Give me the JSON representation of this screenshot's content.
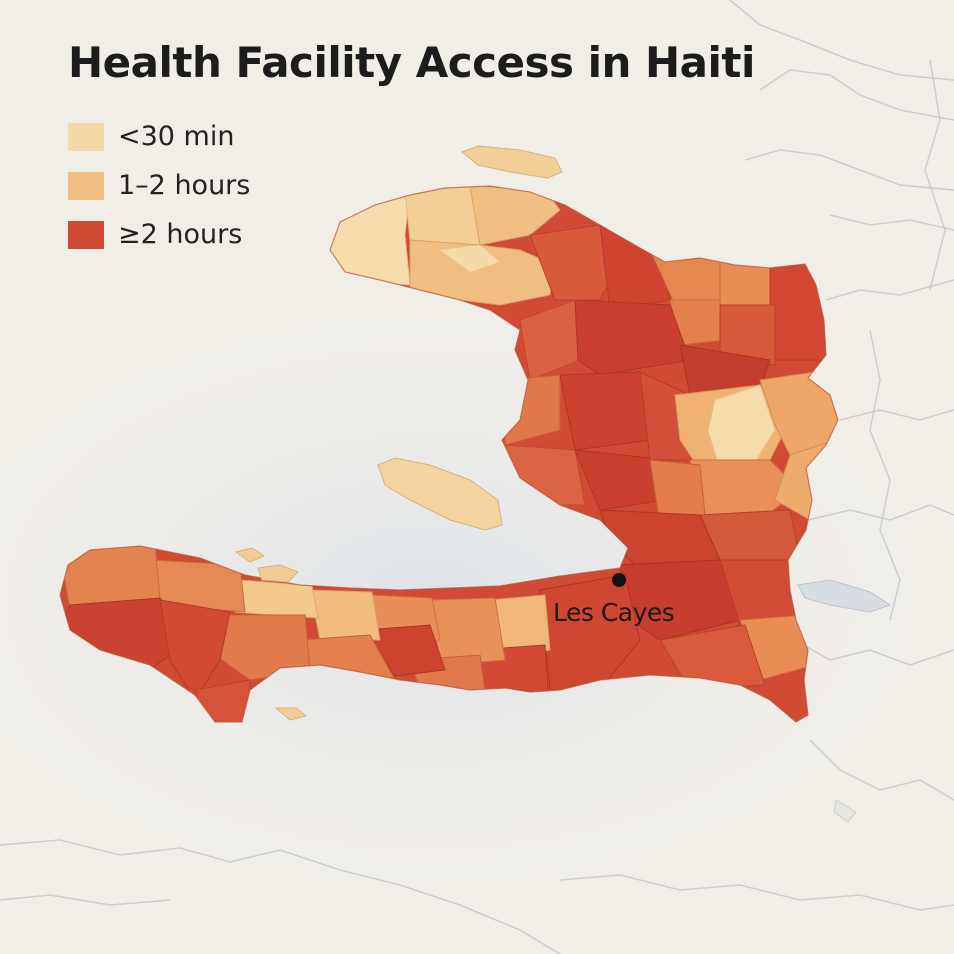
{
  "map": {
    "title": "Health Facility Access in Haiti",
    "legend": [
      {
        "label": "<30 min",
        "color": "#f5d9a9"
      },
      {
        "label": "1–2 hours",
        "color": "#efbe80"
      },
      {
        "label": "≥2 hours",
        "color": "#cf4a32"
      }
    ],
    "places": [
      {
        "name": "Les Cayes",
        "kind": "city-marker"
      }
    ],
    "colors": {
      "background": "#f1eee8",
      "sea": "#e4e8ec",
      "mid_orange": "#e0784a",
      "border_lines": "#c9cdd2"
    }
  }
}
